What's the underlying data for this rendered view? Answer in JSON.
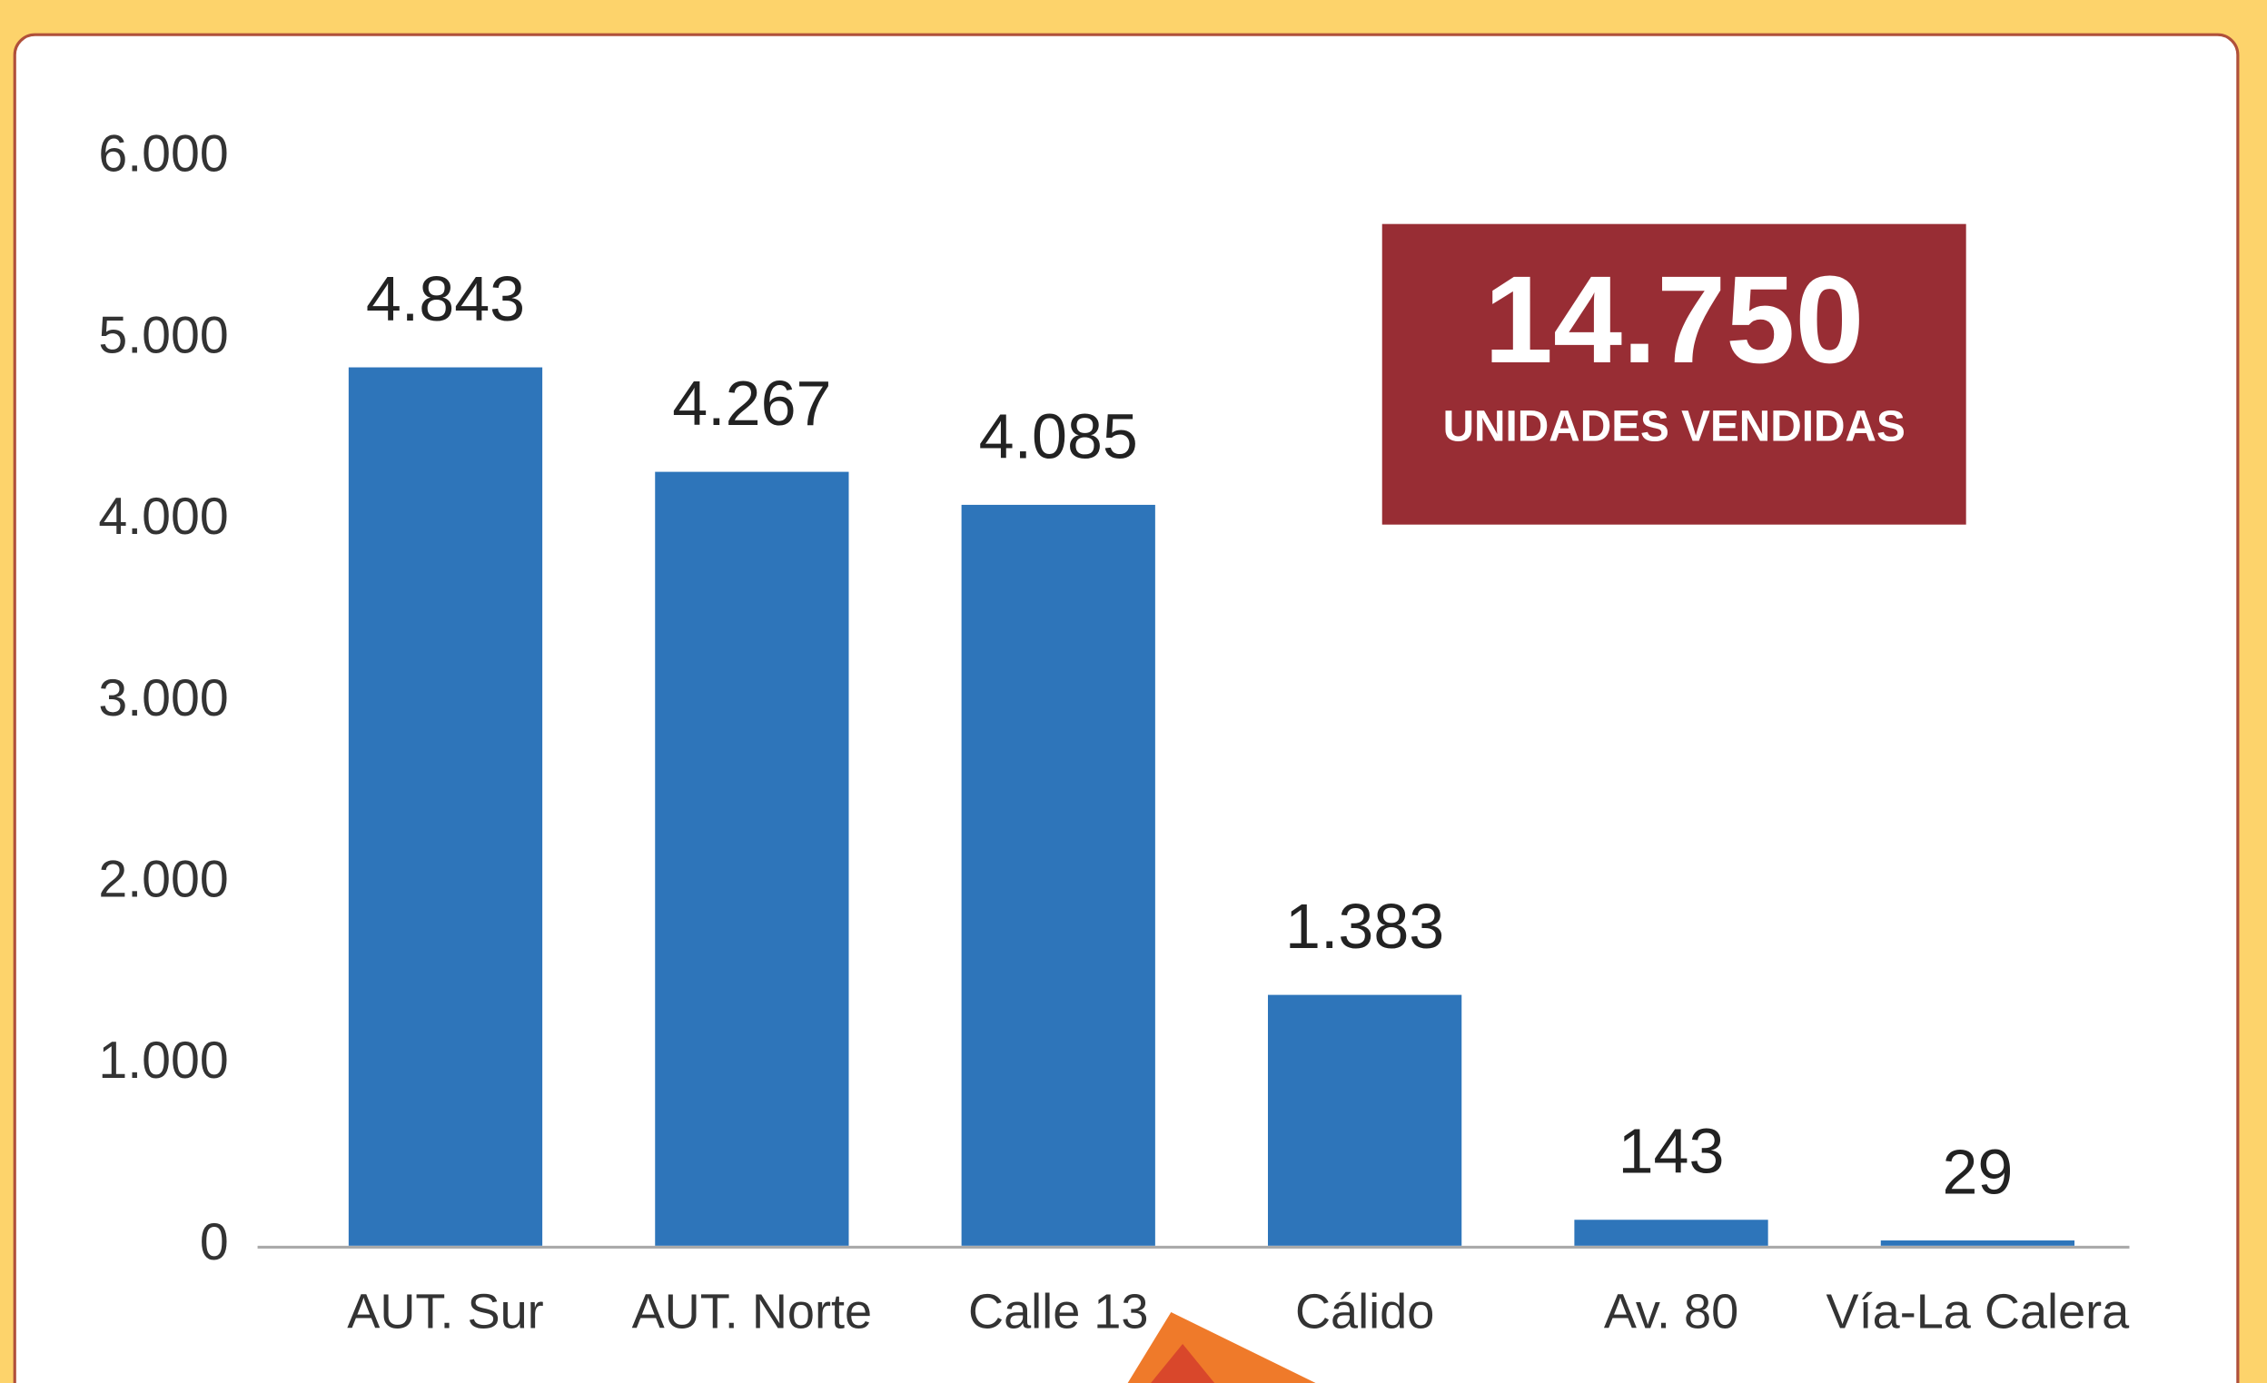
{
  "chart_data": {
    "type": "bar",
    "categories": [
      "AUT. Sur",
      "AUT. Norte",
      "Calle 13",
      "Cálido",
      "Av. 80",
      "Vía-La Calera"
    ],
    "values": [
      4843,
      4267,
      4085,
      1383,
      143,
      29
    ],
    "value_labels": [
      "4.843",
      "4.267",
      "4.085",
      "1.383",
      "143",
      "29"
    ],
    "color": "#2e75ba",
    "ylim": [
      0,
      6000
    ],
    "yticks": [
      0,
      {
        "value": 1000,
        "label": "1.000"
      },
      {
        "value": 2000,
        "label": "2.000"
      },
      {
        "value": 3000,
        "label": "3.000"
      },
      {
        "value": 4000,
        "label": "4.000"
      },
      {
        "value": 5000,
        "label": "5.000"
      },
      {
        "value": 6000,
        "label": "6.000"
      }
    ],
    "grid": false,
    "callout": {
      "value": "14.750",
      "label": "UNIDADES VENDIDAS"
    }
  }
}
